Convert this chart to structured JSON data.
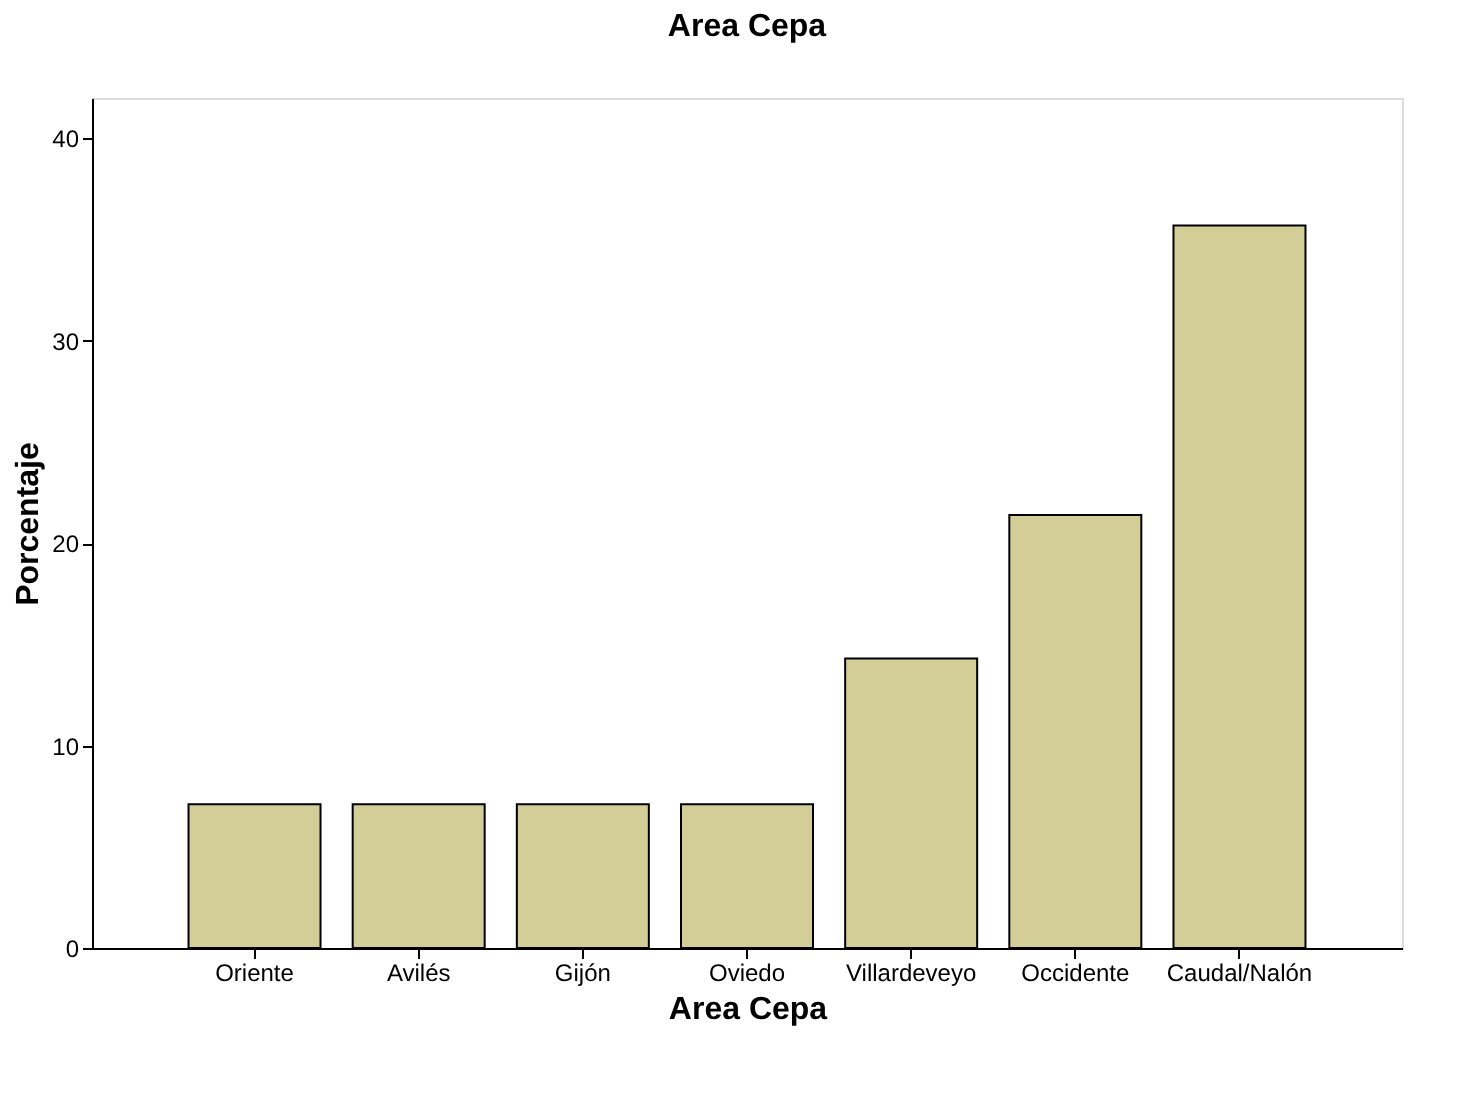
{
  "chart_data": {
    "type": "bar",
    "title": "Area Cepa",
    "xlabel": "Area Cepa",
    "ylabel": "Porcentaje",
    "categories": [
      "Oriente",
      "Avilés",
      "Gijón",
      "Oviedo",
      "Villardeveyo",
      "Occidente",
      "Caudal/Nalón"
    ],
    "values": [
      7.1,
      7.1,
      7.1,
      7.1,
      14.3,
      21.4,
      35.7
    ],
    "color": "#d3ce98",
    "ylim": [
      0,
      42
    ],
    "yticks": [
      0,
      10,
      20,
      30,
      40
    ],
    "grid": false
  }
}
